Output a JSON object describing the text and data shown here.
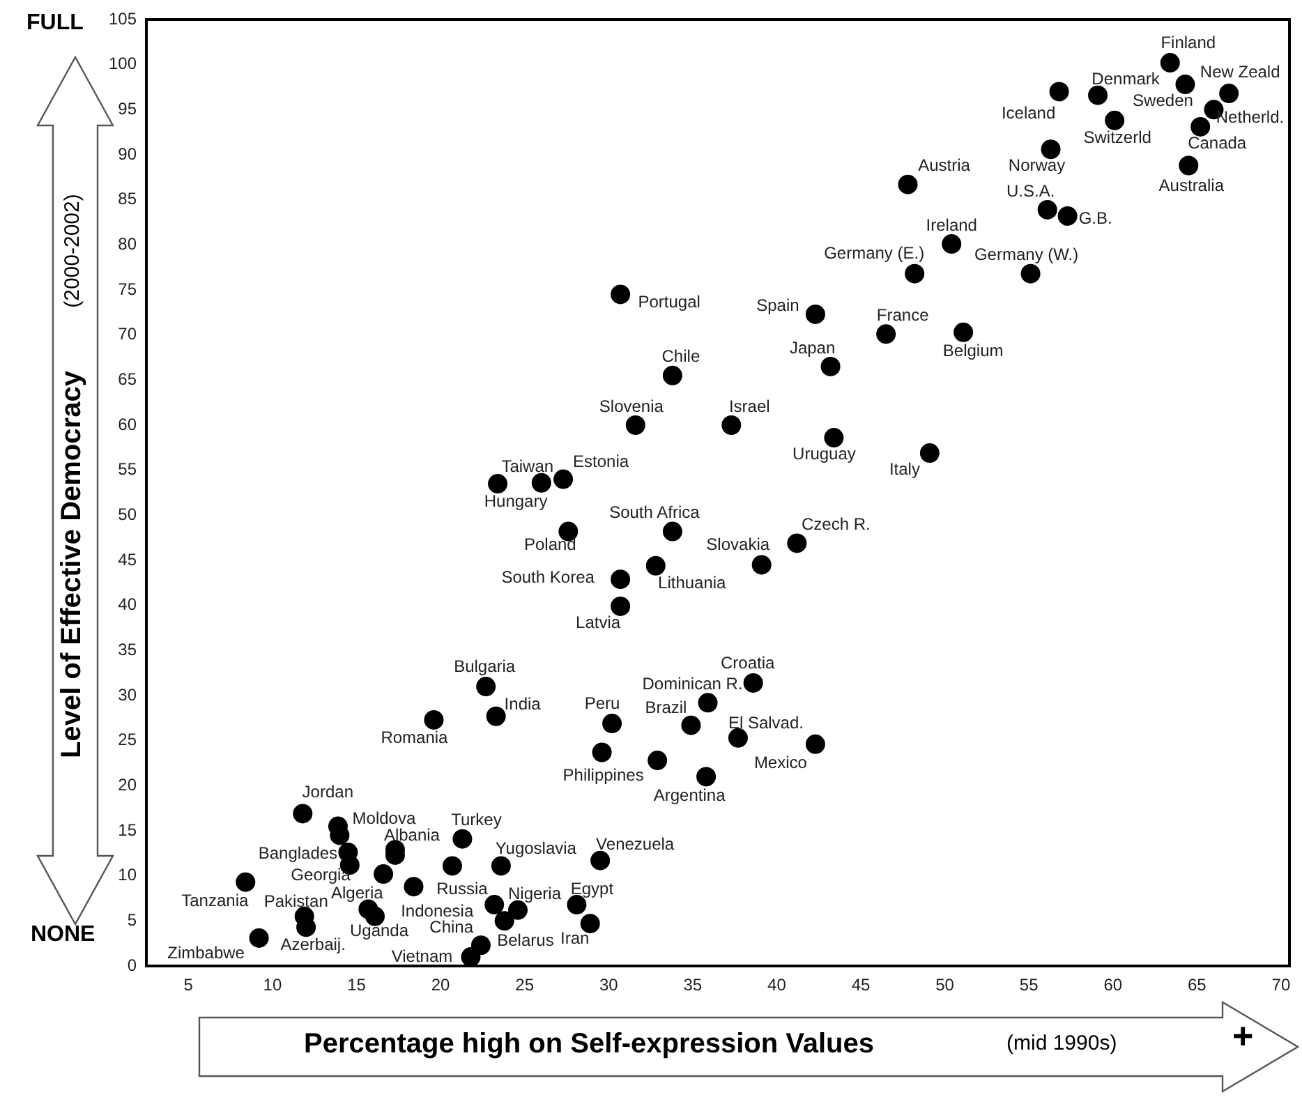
{
  "chart_data": {
    "type": "scatter",
    "color": "#000000",
    "marker": "circle",
    "xlabel": "Percentage high on Self-expression Values",
    "ylabel": "Level of Effective Democracy",
    "xlim": [
      2.5,
      70.5
    ],
    "ylim": [
      0,
      105
    ],
    "xticks": [
      5,
      10,
      15,
      20,
      25,
      30,
      35,
      40,
      45,
      50,
      55,
      60,
      65,
      70
    ],
    "yticks": [
      0,
      5,
      10,
      15,
      20,
      25,
      30,
      35,
      40,
      45,
      50,
      55,
      60,
      65,
      70,
      75,
      80,
      85,
      90,
      95,
      100,
      105
    ],
    "x": [
      11.8,
      13.9,
      14.0,
      14.5,
      14.6,
      17.3,
      17.3,
      16.6,
      8.4,
      11.9,
      12.0,
      9.2,
      15.7,
      16.1,
      18.4,
      20.7,
      21.3,
      23.6,
      29.5,
      23.2,
      24.6,
      23.8,
      22.4,
      21.8,
      28.1,
      28.9,
      30.7,
      22.7,
      23.3,
      19.6,
      30.2,
      29.6,
      32.9,
      35.8,
      34.9,
      35.9,
      38.6,
      37.7,
      42.3,
      30.7,
      42.3,
      46.5,
      43.2,
      33.8,
      31.6,
      37.3,
      43.4,
      49.1,
      23.4,
      26.0,
      27.3,
      27.6,
      33.8,
      41.2,
      39.1,
      32.8,
      30.7,
      47.8,
      50.4,
      48.2,
      55.1,
      51.1,
      56.3,
      56.1,
      57.3,
      63.4,
      56.8,
      59.1,
      64.3,
      66.9,
      66.0,
      65.2,
      60.1,
      64.5
    ],
    "values": [
      16.9,
      15.5,
      14.5,
      12.6,
      11.2,
      12.9,
      12.3,
      10.2,
      9.3,
      5.5,
      4.3,
      3.1,
      6.3,
      5.5,
      8.8,
      11.1,
      14.1,
      11.1,
      11.7,
      6.8,
      6.2,
      5.0,
      2.3,
      1.0,
      6.8,
      4.7,
      39.9,
      31.0,
      27.7,
      27.3,
      26.9,
      23.7,
      22.8,
      21.0,
      26.7,
      29.2,
      31.4,
      25.3,
      24.6,
      74.5,
      72.3,
      70.1,
      66.5,
      65.5,
      60.0,
      60.0,
      58.6,
      56.9,
      53.5,
      53.6,
      54.0,
      48.2,
      48.2,
      46.9,
      44.5,
      44.4,
      42.9,
      86.7,
      80.1,
      76.8,
      76.8,
      70.3,
      90.6,
      83.9,
      83.2,
      100.2,
      97.0,
      96.6,
      97.8,
      96.8,
      95.0,
      93.1,
      93.8,
      88.8
    ],
    "annotations": [
      "(2000-2002)",
      "(mid 1990s)",
      "FULL",
      "NONE",
      "+",
      {
        "text": "Jordan",
        "x": 11.8,
        "y": 16.9
      },
      {
        "text": "Moldova",
        "x": 13.9,
        "y": 15.5
      },
      {
        "text": "Banglades",
        "x": 14.5,
        "y": 12.6
      },
      {
        "text": "Albania",
        "x": 17.3,
        "y": 12.9
      },
      {
        "text": "Georgia",
        "x": 16.6,
        "y": 10.2
      },
      {
        "text": "Tanzania",
        "x": 8.4,
        "y": 9.3
      },
      {
        "text": "Pakistan",
        "x": 11.9,
        "y": 5.5
      },
      {
        "text": "Azerbaij.",
        "x": 12.0,
        "y": 4.3
      },
      {
        "text": "Zimbabwe",
        "x": 9.2,
        "y": 3.1
      },
      {
        "text": "Algeria",
        "x": 15.7,
        "y": 6.3
      },
      {
        "text": "Uganda",
        "x": 16.1,
        "y": 5.5
      },
      {
        "text": "Russia",
        "x": 20.7,
        "y": 11.1
      },
      {
        "text": "Turkey",
        "x": 21.3,
        "y": 14.1
      },
      {
        "text": "Yugoslavia",
        "x": 23.6,
        "y": 11.1
      },
      {
        "text": "Venezuela",
        "x": 29.5,
        "y": 11.7
      },
      {
        "text": "Indonesia",
        "x": 23.2,
        "y": 6.8
      },
      {
        "text": "Nigeria",
        "x": 24.6,
        "y": 6.2
      },
      {
        "text": "China",
        "x": 23.8,
        "y": 5.0
      },
      {
        "text": "Belarus",
        "x": 22.4,
        "y": 2.3
      },
      {
        "text": "Vietnam",
        "x": 21.8,
        "y": 1.0
      },
      {
        "text": "Egypt",
        "x": 28.1,
        "y": 6.8
      },
      {
        "text": "Iran",
        "x": 28.9,
        "y": 4.7
      },
      {
        "text": "Latvia",
        "x": 30.7,
        "y": 39.9
      },
      {
        "text": "Bulgaria",
        "x": 22.7,
        "y": 31.0
      },
      {
        "text": "India",
        "x": 23.3,
        "y": 27.7
      },
      {
        "text": "Romania",
        "x": 19.6,
        "y": 27.3
      },
      {
        "text": "Peru",
        "x": 30.2,
        "y": 26.9
      },
      {
        "text": "Philippines",
        "x": 29.6,
        "y": 23.7
      },
      {
        "text": "Argentina",
        "x": 35.8,
        "y": 21.0
      },
      {
        "text": "Brazil",
        "x": 34.9,
        "y": 26.7
      },
      {
        "text": "Dominican R.",
        "x": 35.9,
        "y": 29.2
      },
      {
        "text": "Croatia",
        "x": 38.6,
        "y": 31.4
      },
      {
        "text": "El Salvad.",
        "x": 37.7,
        "y": 25.3
      },
      {
        "text": "Mexico",
        "x": 42.3,
        "y": 24.6
      },
      {
        "text": "Portugal",
        "x": 30.7,
        "y": 74.5
      },
      {
        "text": "Spain",
        "x": 42.3,
        "y": 72.3
      },
      {
        "text": "France",
        "x": 46.5,
        "y": 70.1
      },
      {
        "text": "Japan",
        "x": 43.2,
        "y": 66.5
      },
      {
        "text": "Chile",
        "x": 33.8,
        "y": 65.5
      },
      {
        "text": "Slovenia",
        "x": 31.6,
        "y": 60.0
      },
      {
        "text": "Israel",
        "x": 37.3,
        "y": 60.0
      },
      {
        "text": "Uruguay",
        "x": 43.4,
        "y": 58.6
      },
      {
        "text": "Italy",
        "x": 49.1,
        "y": 56.9
      },
      {
        "text": "Hungary",
        "x": 23.4,
        "y": 53.5
      },
      {
        "text": "Taiwan",
        "x": 26.0,
        "y": 53.6
      },
      {
        "text": "Estonia",
        "x": 27.3,
        "y": 54.0
      },
      {
        "text": "Poland",
        "x": 27.6,
        "y": 48.2
      },
      {
        "text": "South Africa",
        "x": 33.8,
        "y": 48.2
      },
      {
        "text": "Czech R.",
        "x": 41.2,
        "y": 46.9
      },
      {
        "text": "Slovakia",
        "x": 39.1,
        "y": 44.5
      },
      {
        "text": "Lithuania",
        "x": 32.8,
        "y": 44.4
      },
      {
        "text": "South Korea",
        "x": 30.7,
        "y": 42.9
      },
      {
        "text": "Austria",
        "x": 47.8,
        "y": 86.7
      },
      {
        "text": "Ireland",
        "x": 50.4,
        "y": 80.1
      },
      {
        "text": "Germany (E.)",
        "x": 48.2,
        "y": 76.8
      },
      {
        "text": "Germany (W.)",
        "x": 55.1,
        "y": 76.8
      },
      {
        "text": "Belgium",
        "x": 51.1,
        "y": 70.3
      },
      {
        "text": "Norway",
        "x": 56.3,
        "y": 90.6
      },
      {
        "text": "U.S.A.",
        "x": 56.1,
        "y": 83.9
      },
      {
        "text": "G.B.",
        "x": 57.3,
        "y": 83.2
      },
      {
        "text": "Finland",
        "x": 63.4,
        "y": 100.2
      },
      {
        "text": "Iceland",
        "x": 56.8,
        "y": 97.0
      },
      {
        "text": "Denmark",
        "x": 59.1,
        "y": 96.6
      },
      {
        "text": "Sweden",
        "x": 64.3,
        "y": 97.8
      },
      {
        "text": "New Zeald",
        "x": 66.9,
        "y": 96.8
      },
      {
        "text": "Netherld.",
        "x": 66.0,
        "y": 95.0
      },
      {
        "text": "Canada",
        "x": 65.2,
        "y": 93.1
      },
      {
        "text": "Switzerld",
        "x": 60.1,
        "y": 93.8
      },
      {
        "text": "Australia",
        "x": 64.5,
        "y": 88.8
      }
    ]
  }
}
